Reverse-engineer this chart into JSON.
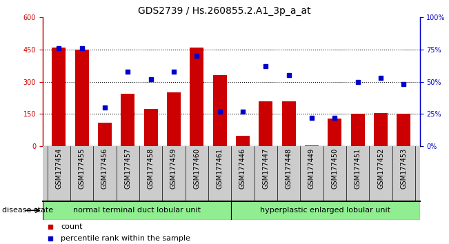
{
  "title": "GDS2739 / Hs.260855.2.A1_3p_a_at",
  "samples": [
    "GSM177454",
    "GSM177455",
    "GSM177456",
    "GSM177457",
    "GSM177458",
    "GSM177459",
    "GSM177460",
    "GSM177461",
    "GSM177446",
    "GSM177447",
    "GSM177448",
    "GSM177449",
    "GSM177450",
    "GSM177451",
    "GSM177452",
    "GSM177453"
  ],
  "counts": [
    460,
    450,
    110,
    245,
    175,
    250,
    460,
    330,
    50,
    210,
    210,
    5,
    130,
    150,
    155,
    150
  ],
  "percentiles": [
    76,
    76,
    30,
    58,
    52,
    58,
    70,
    27,
    27,
    62,
    55,
    22,
    22,
    50,
    53,
    48
  ],
  "group1_label": "normal terminal duct lobular unit",
  "group2_label": "hyperplastic enlarged lobular unit",
  "group1_count": 8,
  "group2_count": 8,
  "bar_color": "#cc0000",
  "dot_color": "#0000cc",
  "ylim_left": [
    0,
    600
  ],
  "ylim_right": [
    0,
    100
  ],
  "yticks_left": [
    0,
    150,
    300,
    450,
    600
  ],
  "yticks_right": [
    0,
    25,
    50,
    75,
    100
  ],
  "ytick_labels_left": [
    "0",
    "150",
    "300",
    "450",
    "600"
  ],
  "ytick_labels_right": [
    "0%",
    "25%",
    "50%",
    "75%",
    "100%"
  ],
  "grid_values": [
    150,
    300,
    450
  ],
  "group_color": "#90ee90",
  "xticklabel_bg": "#cccccc",
  "disease_state_label": "disease state",
  "legend_count_label": "count",
  "legend_pct_label": "percentile rank within the sample",
  "title_fontsize": 10,
  "tick_fontsize": 7,
  "label_fontsize": 8
}
